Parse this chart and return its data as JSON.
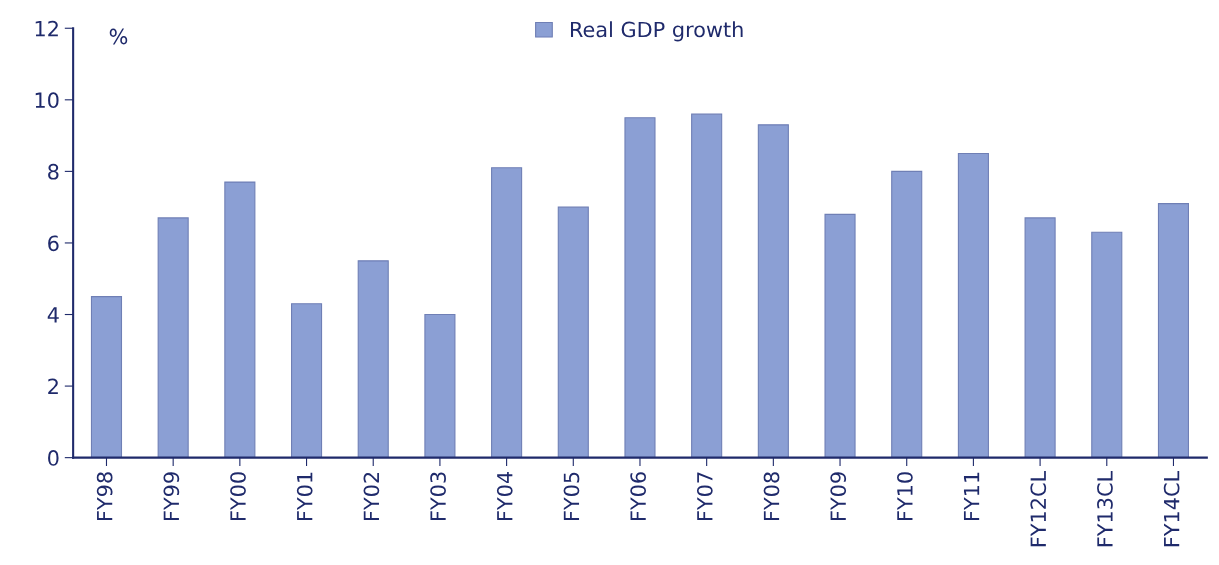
{
  "chart_data": {
    "type": "bar",
    "ylabel": "%",
    "categories": [
      "FY98",
      "FY99",
      "FY00",
      "FY01",
      "FY02",
      "FY03",
      "FY04",
      "FY05",
      "FY06",
      "FY07",
      "FY08",
      "FY09",
      "FY10",
      "FY11",
      "FY12CL",
      "FY13CL",
      "FY14CL"
    ],
    "series": [
      {
        "name": "Real GDP growth",
        "color": "#8b9fd4",
        "values": [
          4.5,
          6.7,
          7.7,
          4.3,
          5.5,
          4.0,
          8.1,
          7.0,
          9.5,
          9.6,
          9.3,
          6.8,
          8.0,
          8.5,
          6.7,
          6.3,
          7.1
        ]
      }
    ],
    "ylim": [
      0,
      12
    ],
    "yticks": [
      0,
      2,
      4,
      6,
      8,
      10,
      12
    ],
    "grid": false,
    "legend": "top"
  }
}
